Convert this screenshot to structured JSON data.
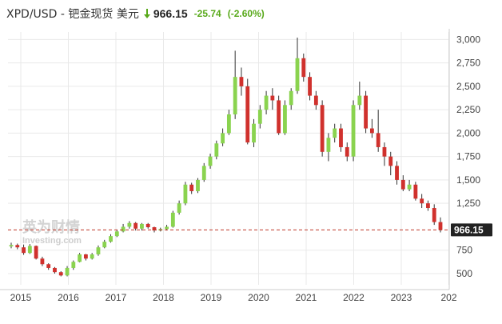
{
  "header": {
    "title": "XPD/USD - 钯金现货 美元",
    "price": "966.15",
    "change": "-25.74",
    "change_pct": "(-2.60%)"
  },
  "colors": {
    "up": "#8ad34f",
    "down": "#d0312d",
    "change": "#58a91a",
    "grid": "#e9e9e9",
    "axis_text": "#444444",
    "last_label_bg": "#222222"
  },
  "icons": {
    "change_direction": "down-arrow-icon"
  },
  "watermark": {
    "cn": "英为财情",
    "en": "Investing.com"
  },
  "chart_data": {
    "type": "candlestick",
    "x_ticks": [
      "2015",
      "2016",
      "2017",
      "2018",
      "2019",
      "2020",
      "2021",
      "2022",
      "2023",
      "202"
    ],
    "y_ticks": [
      "3,000",
      "2,750",
      "2,500",
      "2,250",
      "2,000",
      "1,750",
      "1,500",
      "1,250",
      "966.15",
      "750",
      "500"
    ],
    "y_tick_values": [
      3000,
      2750,
      2500,
      2250,
      2000,
      1750,
      1500,
      1250,
      966.15,
      750,
      500
    ],
    "ylim": [
      380,
      3080
    ],
    "last_value": 966.15,
    "last_label": "966.15",
    "close": [
      805,
      780,
      720,
      795,
      660,
      600,
      560,
      515,
      480,
      560,
      625,
      705,
      660,
      705,
      780,
      840,
      900,
      950,
      1000,
      1040,
      980,
      1030,
      995,
      960,
      975,
      1000,
      1150,
      1250,
      1450,
      1380,
      1500,
      1650,
      1750,
      1890,
      2000,
      2200,
      2600,
      2500,
      1900,
      2100,
      2250,
      2400,
      2350,
      2000,
      2300,
      2450,
      2800,
      2600,
      2400,
      2300,
      1800,
      1950,
      2050,
      1850,
      1750,
      2300,
      2400,
      2050,
      2000,
      1850,
      1750,
      1650,
      1500,
      1400,
      1450,
      1300,
      1250,
      1200,
      1050,
      966.15
    ],
    "open": [
      790,
      805,
      780,
      720,
      795,
      660,
      600,
      560,
      515,
      480,
      560,
      625,
      705,
      660,
      705,
      780,
      840,
      900,
      950,
      1000,
      1040,
      980,
      1030,
      995,
      960,
      975,
      1000,
      1150,
      1250,
      1450,
      1380,
      1500,
      1650,
      1750,
      1890,
      2000,
      2200,
      2600,
      2500,
      1900,
      2100,
      2250,
      2400,
      2350,
      2000,
      2300,
      2450,
      2800,
      2600,
      2400,
      2300,
      1800,
      1950,
      2050,
      1850,
      1750,
      2300,
      2400,
      2050,
      2000,
      1850,
      1750,
      1650,
      1500,
      1400,
      1450,
      1300,
      1250,
      1200,
      1050
    ],
    "high": [
      830,
      820,
      810,
      815,
      800,
      680,
      610,
      570,
      525,
      580,
      640,
      720,
      710,
      720,
      800,
      860,
      920,
      970,
      1030,
      1060,
      1050,
      1040,
      1040,
      1000,
      990,
      1020,
      1170,
      1280,
      1480,
      1470,
      1520,
      1680,
      1780,
      1920,
      2050,
      2250,
      2880,
      2700,
      2580,
      2150,
      2300,
      2450,
      2480,
      2400,
      2350,
      2480,
      3020,
      2850,
      2650,
      2450,
      2350,
      2000,
      2100,
      2100,
      1900,
      2350,
      2550,
      2450,
      2150,
      2250,
      1900,
      1800,
      1700,
      1550,
      1500,
      1480,
      1350,
      1280,
      1240,
      1100
    ],
    "low": [
      770,
      760,
      700,
      710,
      650,
      580,
      540,
      500,
      470,
      470,
      540,
      620,
      640,
      650,
      690,
      770,
      830,
      890,
      940,
      980,
      960,
      960,
      980,
      940,
      950,
      960,
      990,
      1130,
      1230,
      1350,
      1360,
      1480,
      1620,
      1720,
      1860,
      1980,
      2150,
      2400,
      1880,
      1850,
      2050,
      2200,
      2250,
      1980,
      1980,
      2250,
      2420,
      2550,
      2350,
      2250,
      1750,
      1700,
      1900,
      1800,
      1700,
      1700,
      2250,
      2000,
      1950,
      1800,
      1650,
      1550,
      1450,
      1380,
      1380,
      1280,
      1200,
      1170,
      1020,
      940
    ]
  }
}
